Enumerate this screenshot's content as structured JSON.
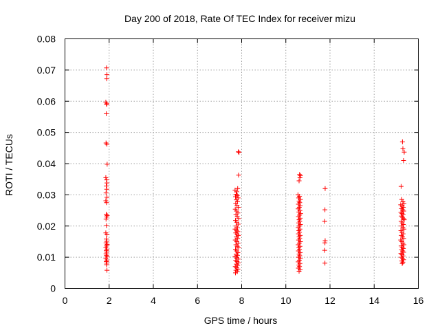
{
  "chart_data": {
    "type": "scatter",
    "title": "Day 200 of 2018, Rate Of TEC Index for receiver mizu",
    "xlabel": "GPS time / hours",
    "ylabel": "ROTI / TECUs",
    "xlim": [
      0,
      16
    ],
    "ylim": [
      0,
      0.08
    ],
    "xticks": [
      0,
      2,
      4,
      6,
      8,
      10,
      12,
      14,
      16
    ],
    "xtick_labels": [
      "0",
      "2",
      "4",
      "6",
      "8",
      "10",
      "12",
      "14",
      "16"
    ],
    "yticks": [
      0,
      0.01,
      0.02,
      0.03,
      0.04,
      0.05,
      0.06,
      0.07,
      0.08
    ],
    "ytick_labels": [
      "0",
      "0.01",
      "0.02",
      "0.03",
      "0.04",
      "0.05",
      "0.06",
      "0.07",
      "0.08"
    ],
    "grid": true,
    "marker": "+",
    "marker_color": "#ff0000",
    "series": [
      {
        "name": "ROTI",
        "points": [
          [
            1.88,
            0.0707
          ],
          [
            1.9,
            0.0685
          ],
          [
            1.89,
            0.0672
          ],
          [
            1.85,
            0.0597
          ],
          [
            1.9,
            0.0592
          ],
          [
            1.88,
            0.059
          ],
          [
            1.87,
            0.056
          ],
          [
            1.86,
            0.0466
          ],
          [
            1.9,
            0.0462
          ],
          [
            1.91,
            0.0398
          ],
          [
            1.85,
            0.0355
          ],
          [
            1.88,
            0.0348
          ],
          [
            1.9,
            0.0338
          ],
          [
            1.87,
            0.0328
          ],
          [
            1.89,
            0.0318
          ],
          [
            1.86,
            0.0306
          ],
          [
            1.9,
            0.0292
          ],
          [
            1.85,
            0.0281
          ],
          [
            1.88,
            0.0275
          ],
          [
            1.87,
            0.0238
          ],
          [
            1.91,
            0.0234
          ],
          [
            1.89,
            0.0229
          ],
          [
            1.86,
            0.0222
          ],
          [
            1.88,
            0.0201
          ],
          [
            1.85,
            0.0178
          ],
          [
            1.9,
            0.0172
          ],
          [
            1.87,
            0.0158
          ],
          [
            1.89,
            0.0151
          ],
          [
            1.86,
            0.0146
          ],
          [
            1.91,
            0.0141
          ],
          [
            1.88,
            0.0136
          ],
          [
            1.85,
            0.0131
          ],
          [
            1.9,
            0.0126
          ],
          [
            1.87,
            0.0121
          ],
          [
            1.89,
            0.0116
          ],
          [
            1.86,
            0.0111
          ],
          [
            1.88,
            0.0106
          ],
          [
            1.91,
            0.0101
          ],
          [
            1.85,
            0.0096
          ],
          [
            1.9,
            0.0091
          ],
          [
            1.87,
            0.0086
          ],
          [
            1.89,
            0.0081
          ],
          [
            1.88,
            0.0076
          ],
          [
            1.9,
            0.0058
          ],
          [
            7.85,
            0.0438
          ],
          [
            7.88,
            0.0436
          ],
          [
            7.86,
            0.0363
          ],
          [
            7.82,
            0.032
          ],
          [
            7.7,
            0.0315
          ],
          [
            7.78,
            0.031
          ],
          [
            7.75,
            0.0302
          ],
          [
            7.8,
            0.0298
          ],
          [
            7.72,
            0.0294
          ],
          [
            7.84,
            0.029
          ],
          [
            7.76,
            0.0284
          ],
          [
            7.81,
            0.0278
          ],
          [
            7.73,
            0.0272
          ],
          [
            7.79,
            0.0266
          ],
          [
            7.85,
            0.026
          ],
          [
            7.71,
            0.0254
          ],
          [
            7.77,
            0.0248
          ],
          [
            7.83,
            0.0242
          ],
          [
            7.74,
            0.0236
          ],
          [
            7.8,
            0.023
          ],
          [
            7.86,
            0.0224
          ],
          [
            7.72,
            0.0218
          ],
          [
            7.78,
            0.0212
          ],
          [
            7.84,
            0.0206
          ],
          [
            7.75,
            0.02
          ],
          [
            7.81,
            0.0194
          ],
          [
            7.7,
            0.019
          ],
          [
            7.77,
            0.0186
          ],
          [
            7.83,
            0.0182
          ],
          [
            7.73,
            0.0178
          ],
          [
            7.79,
            0.0174
          ],
          [
            7.85,
            0.017
          ],
          [
            7.76,
            0.0165
          ],
          [
            7.82,
            0.016
          ],
          [
            7.71,
            0.0155
          ],
          [
            7.78,
            0.015
          ],
          [
            7.84,
            0.0145
          ],
          [
            7.74,
            0.014
          ],
          [
            7.8,
            0.0135
          ],
          [
            7.86,
            0.013
          ],
          [
            7.72,
            0.0125
          ],
          [
            7.77,
            0.012
          ],
          [
            7.83,
            0.0115
          ],
          [
            7.75,
            0.011
          ],
          [
            7.81,
            0.0106
          ],
          [
            7.7,
            0.0102
          ],
          [
            7.78,
            0.0098
          ],
          [
            7.84,
            0.0094
          ],
          [
            7.73,
            0.009
          ],
          [
            7.79,
            0.0086
          ],
          [
            7.85,
            0.0082
          ],
          [
            7.76,
            0.0078
          ],
          [
            7.82,
            0.0074
          ],
          [
            7.71,
            0.007
          ],
          [
            7.77,
            0.0066
          ],
          [
            7.83,
            0.0062
          ],
          [
            7.74,
            0.0058
          ],
          [
            7.8,
            0.0054
          ],
          [
            7.72,
            0.005
          ],
          [
            10.62,
            0.0365
          ],
          [
            10.66,
            0.0362
          ],
          [
            10.64,
            0.0355
          ],
          [
            10.6,
            0.0345
          ],
          [
            10.55,
            0.03
          ],
          [
            10.62,
            0.0295
          ],
          [
            10.58,
            0.029
          ],
          [
            10.66,
            0.0285
          ],
          [
            10.6,
            0.028
          ],
          [
            10.63,
            0.0275
          ],
          [
            10.57,
            0.027
          ],
          [
            10.65,
            0.0265
          ],
          [
            10.61,
            0.026
          ],
          [
            10.56,
            0.0255
          ],
          [
            10.64,
            0.025
          ],
          [
            10.59,
            0.0245
          ],
          [
            10.67,
            0.024
          ],
          [
            10.62,
            0.0235
          ],
          [
            10.57,
            0.023
          ],
          [
            10.65,
            0.0225
          ],
          [
            10.6,
            0.022
          ],
          [
            10.63,
            0.0215
          ],
          [
            10.58,
            0.021
          ],
          [
            10.66,
            0.0205
          ],
          [
            10.61,
            0.02
          ],
          [
            10.56,
            0.0195
          ],
          [
            10.64,
            0.019
          ],
          [
            10.59,
            0.0185
          ],
          [
            10.62,
            0.018
          ],
          [
            10.57,
            0.0175
          ],
          [
            10.65,
            0.017
          ],
          [
            10.6,
            0.0165
          ],
          [
            10.63,
            0.016
          ],
          [
            10.58,
            0.0155
          ],
          [
            10.66,
            0.015
          ],
          [
            10.61,
            0.0145
          ],
          [
            10.56,
            0.014
          ],
          [
            10.64,
            0.0135
          ],
          [
            10.59,
            0.013
          ],
          [
            10.62,
            0.0125
          ],
          [
            10.57,
            0.012
          ],
          [
            10.65,
            0.0115
          ],
          [
            10.6,
            0.011
          ],
          [
            10.63,
            0.0105
          ],
          [
            10.58,
            0.01
          ],
          [
            10.66,
            0.0095
          ],
          [
            10.61,
            0.009
          ],
          [
            10.56,
            0.0085
          ],
          [
            10.64,
            0.008
          ],
          [
            10.59,
            0.0075
          ],
          [
            10.62,
            0.007
          ],
          [
            10.57,
            0.0065
          ],
          [
            10.65,
            0.006
          ],
          [
            10.6,
            0.0055
          ],
          [
            11.78,
            0.032
          ],
          [
            11.77,
            0.0252
          ],
          [
            11.76,
            0.0215
          ],
          [
            11.78,
            0.0153
          ],
          [
            11.77,
            0.0146
          ],
          [
            11.76,
            0.0122
          ],
          [
            11.77,
            0.0081
          ],
          [
            15.28,
            0.047
          ],
          [
            15.3,
            0.0448
          ],
          [
            15.36,
            0.0437
          ],
          [
            15.33,
            0.041
          ],
          [
            15.22,
            0.0327
          ],
          [
            15.25,
            0.0285
          ],
          [
            15.3,
            0.0278
          ],
          [
            15.35,
            0.0272
          ],
          [
            15.2,
            0.0268
          ],
          [
            15.27,
            0.0264
          ],
          [
            15.32,
            0.026
          ],
          [
            15.24,
            0.0256
          ],
          [
            15.29,
            0.0252
          ],
          [
            15.34,
            0.0248
          ],
          [
            15.21,
            0.0244
          ],
          [
            15.26,
            0.024
          ],
          [
            15.31,
            0.0236
          ],
          [
            15.23,
            0.0232
          ],
          [
            15.28,
            0.0228
          ],
          [
            15.33,
            0.0224
          ],
          [
            15.36,
            0.022
          ],
          [
            15.22,
            0.0215
          ],
          [
            15.27,
            0.021
          ],
          [
            15.32,
            0.0205
          ],
          [
            15.24,
            0.02
          ],
          [
            15.3,
            0.0195
          ],
          [
            15.35,
            0.019
          ],
          [
            15.21,
            0.0185
          ],
          [
            15.26,
            0.018
          ],
          [
            15.31,
            0.0175
          ],
          [
            15.23,
            0.017
          ],
          [
            15.28,
            0.0165
          ],
          [
            15.34,
            0.016
          ],
          [
            15.2,
            0.0155
          ],
          [
            15.25,
            0.015
          ],
          [
            15.3,
            0.0145
          ],
          [
            15.35,
            0.014
          ],
          [
            15.22,
            0.0136
          ],
          [
            15.27,
            0.0132
          ],
          [
            15.32,
            0.0128
          ],
          [
            15.24,
            0.0124
          ],
          [
            15.29,
            0.012
          ],
          [
            15.34,
            0.0116
          ],
          [
            15.21,
            0.0112
          ],
          [
            15.26,
            0.0108
          ],
          [
            15.31,
            0.0104
          ],
          [
            15.23,
            0.01
          ],
          [
            15.28,
            0.0096
          ],
          [
            15.33,
            0.0092
          ],
          [
            15.25,
            0.0088
          ],
          [
            15.3,
            0.0084
          ],
          [
            15.27,
            0.008
          ]
        ]
      }
    ]
  }
}
